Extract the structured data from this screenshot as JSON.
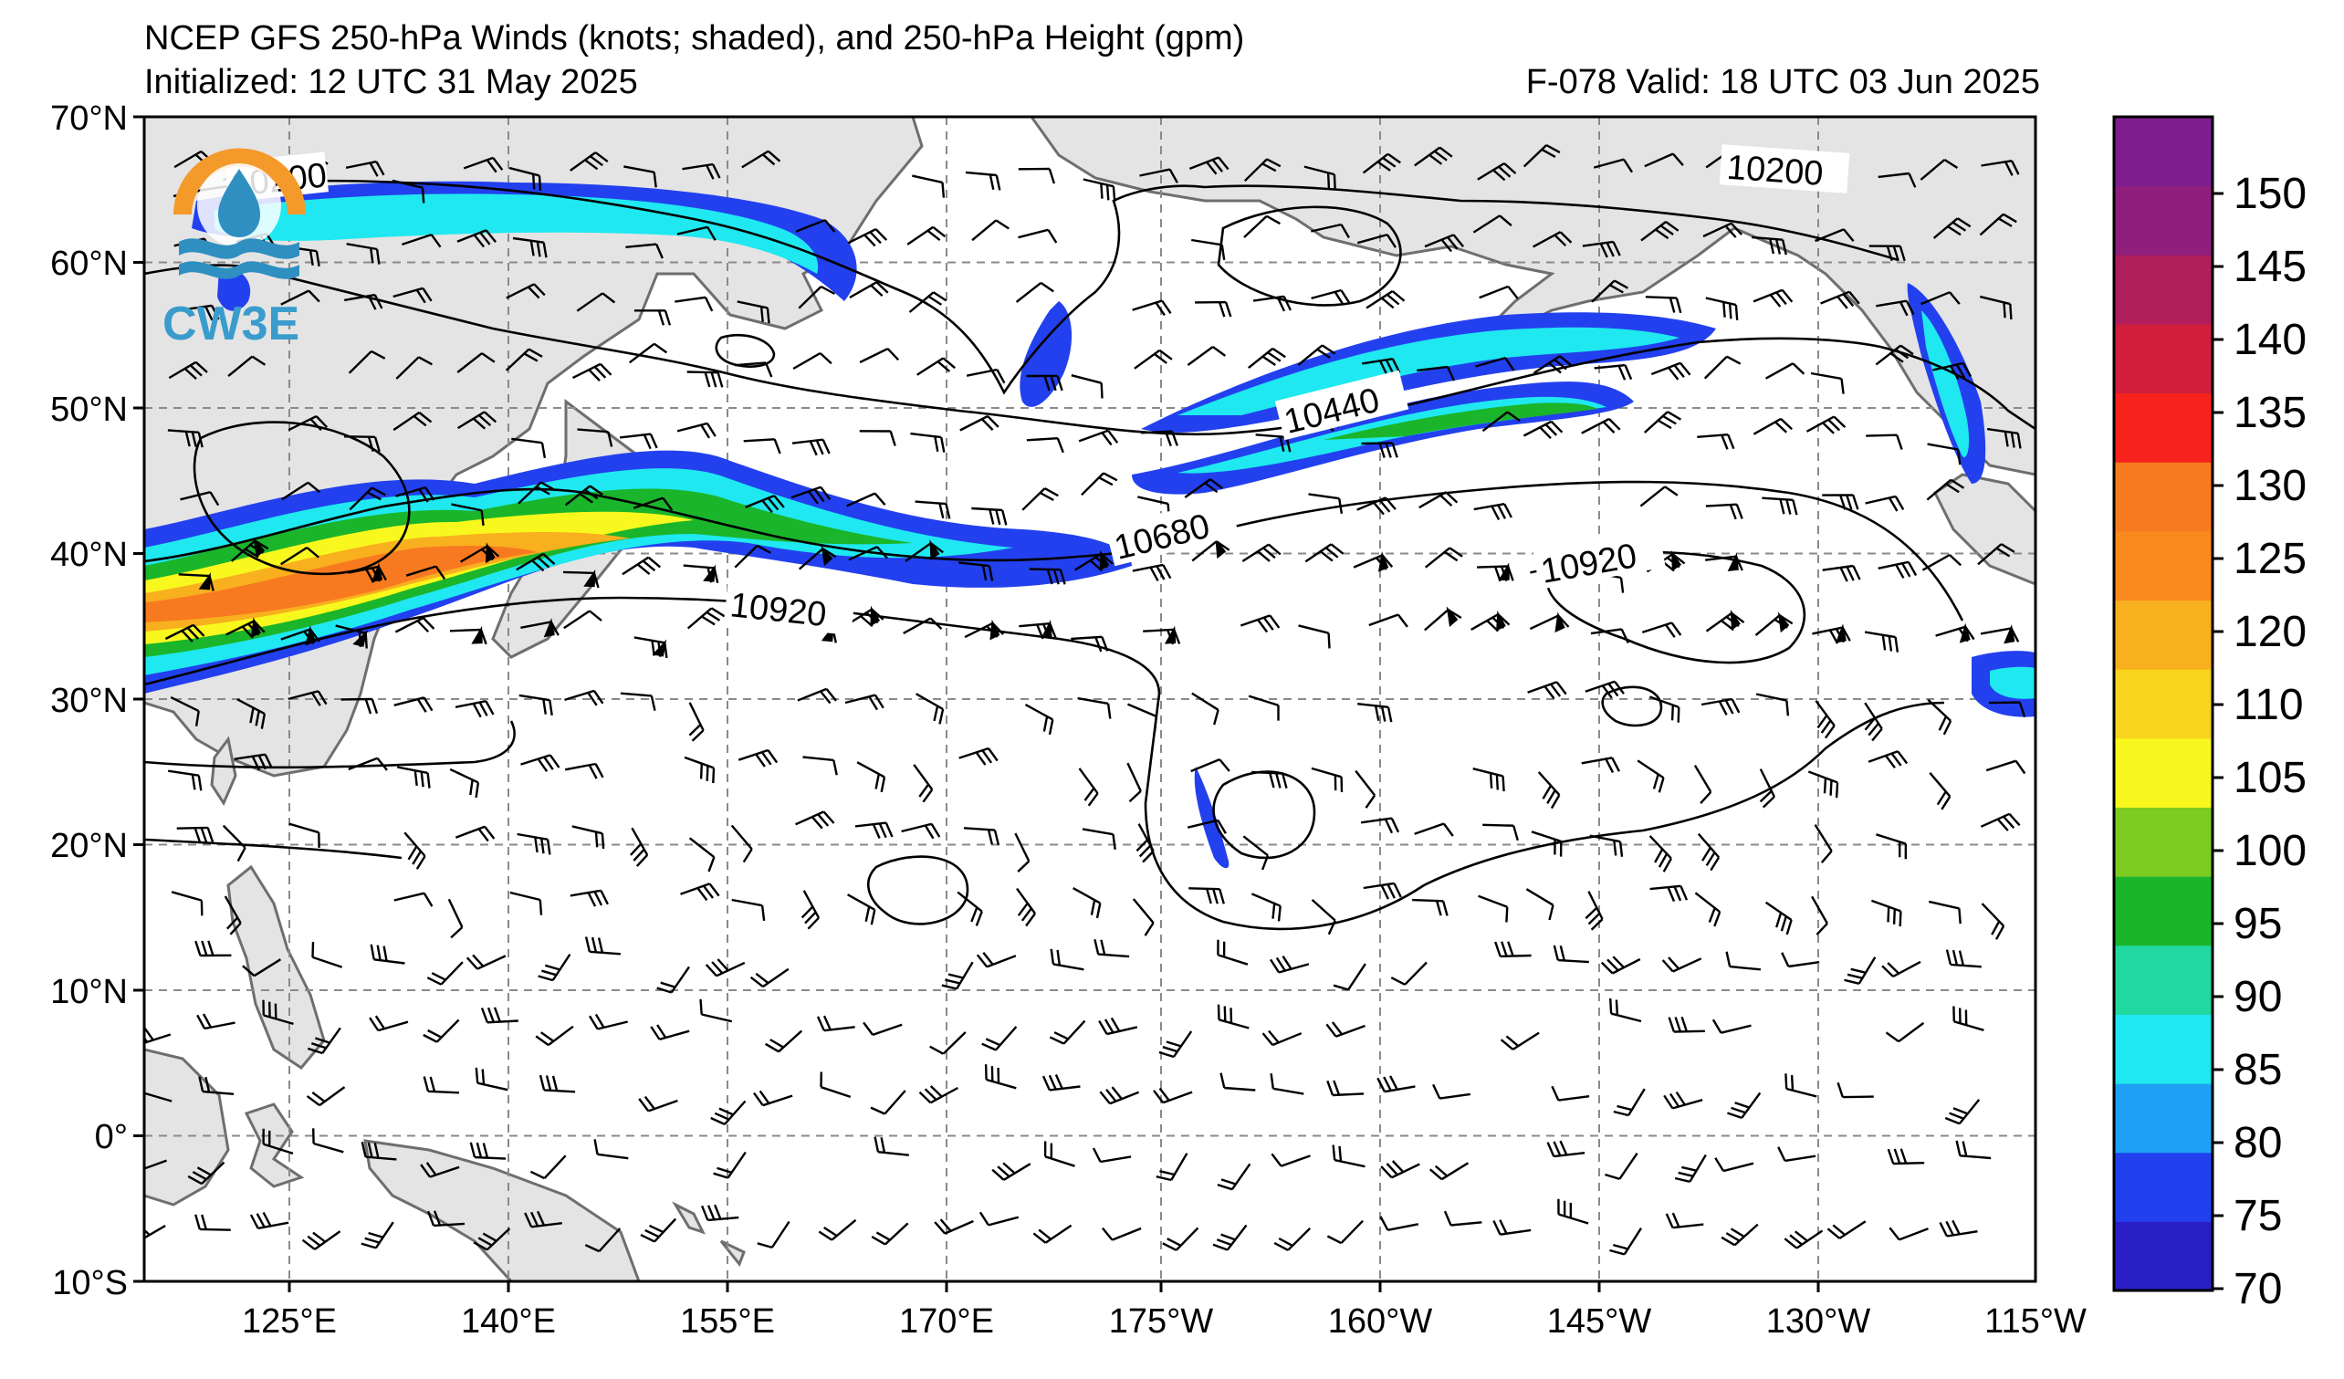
{
  "header": {
    "title": "NCEP GFS 250-hPa Winds (knots; shaded), and 250-hPa Height (gpm)",
    "initialized": "Initialized: 12 UTC 31 May 2025",
    "valid": "F-078  Valid: 18 UTC 03 Jun 2025"
  },
  "logo": {
    "text": "CW3E",
    "colors": {
      "ring": "#f39a2b",
      "wave": "#2e8fc0",
      "text": "#3a9ccc"
    }
  },
  "map": {
    "lat_labels": [
      "70°N",
      "60°N",
      "50°N",
      "40°N",
      "30°N",
      "20°N",
      "10°N",
      "0°",
      "10°S"
    ],
    "lon_labels": [
      "125°E",
      "140°E",
      "155°E",
      "170°E",
      "175°W",
      "160°W",
      "145°W",
      "130°W",
      "115°W"
    ],
    "contour_labels": [
      "10200",
      "10200",
      "10440",
      "10680",
      "10920",
      "10920"
    ],
    "colors": {
      "land": "#e4e4e4",
      "coast": "#6e6e6e",
      "grid": "#8a8a8a",
      "contour": "#000000"
    }
  },
  "colorbar": {
    "ticks": [
      "150",
      "145",
      "140",
      "135",
      "130",
      "125",
      "120",
      "110",
      "105",
      "100",
      "95",
      "90",
      "85",
      "80",
      "75",
      "70"
    ],
    "colors": [
      "#2a1fc4",
      "#2340ee",
      "#1fa0f4",
      "#1fe8f0",
      "#20d8a0",
      "#1ab52a",
      "#7ccc22",
      "#f8f81e",
      "#f8d41c",
      "#f8b01e",
      "#f88a1e",
      "#f87a20",
      "#f8221c",
      "#d01e3c",
      "#b01e5c",
      "#901e7c",
      "#7e1e8e"
    ]
  }
}
